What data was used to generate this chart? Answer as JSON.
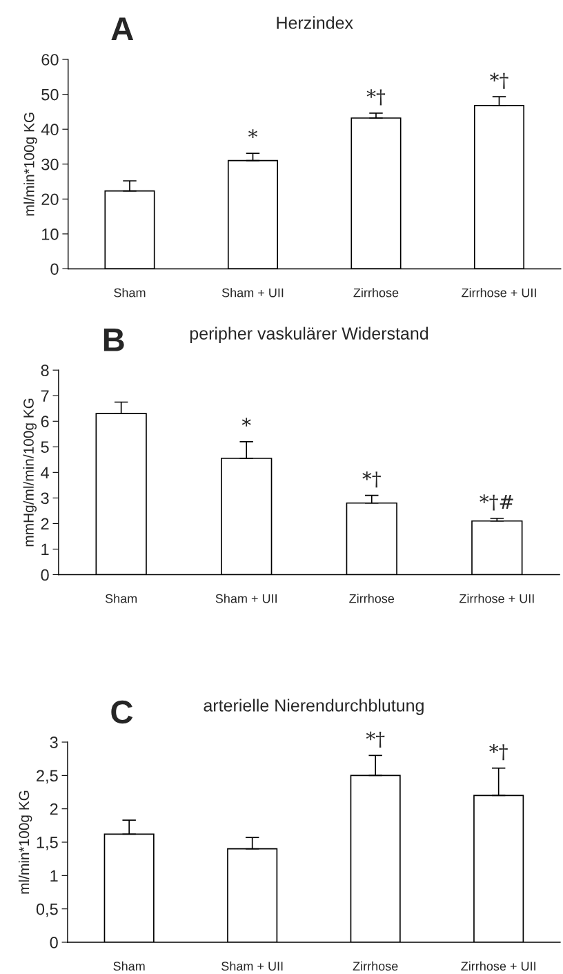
{
  "chart_data": [
    {
      "type": "bar",
      "title": "Herzindex",
      "ylabel": "ml/min*100g KG",
      "categories": [
        "Sham",
        "Sham + UII",
        "Zirrhose",
        "Zirrhose + UII"
      ],
      "values": [
        22.3,
        31,
        43.2,
        46.8
      ],
      "color": "#ffffff",
      "errors": [
        [
          22.3,
          25.2
        ],
        [
          31,
          33.1
        ],
        [
          43.2,
          44.6
        ],
        [
          46.8,
          49.3
        ]
      ],
      "ylim": [
        0,
        60
      ],
      "yticks": [
        0,
        10,
        20,
        30,
        40,
        50,
        60
      ],
      "grid": false,
      "value_labels": [
        null,
        "*",
        "*†",
        "*†"
      ],
      "annotations": [
        "A"
      ]
    },
    {
      "type": "bar",
      "title": "peripher vaskulärer Widerstand",
      "ylabel": "mmHg/ml/min/100g KG",
      "categories": [
        "Sham",
        "Sham + UII",
        "Zirrhose",
        "Zirrhose + UII"
      ],
      "values": [
        6.3,
        4.55,
        2.8,
        2.1
      ],
      "color": "#ffffff",
      "errors": [
        [
          6.3,
          6.75
        ],
        [
          4.55,
          5.2
        ],
        [
          2.8,
          3.1
        ],
        [
          2.1,
          2.2
        ]
      ],
      "ylim": [
        0,
        8
      ],
      "yticks": [
        0,
        1,
        2,
        3,
        4,
        5,
        6,
        7,
        8
      ],
      "grid": false,
      "value_labels": [
        null,
        "*",
        "*†",
        "*†#"
      ],
      "annotations": [
        "B"
      ]
    },
    {
      "type": "bar",
      "title": "arterielle Nierendurchblutung",
      "ylabel": "ml/min*100g KG",
      "categories": [
        "Sham",
        "Sham + UII",
        "Zirrhose",
        "Zirrhose + UII"
      ],
      "values": [
        1.62,
        1.4,
        2.5,
        2.2
      ],
      "color": "#ffffff",
      "errors": [
        [
          1.62,
          1.83
        ],
        [
          1.4,
          1.57
        ],
        [
          2.5,
          2.8
        ],
        [
          2.2,
          2.61
        ]
      ],
      "ylim": [
        0,
        3
      ],
      "yticks": [
        0,
        {
          "value": 0.5,
          "label": "0,5"
        },
        1,
        {
          "value": 1.5,
          "label": "1,5"
        },
        2,
        {
          "value": 2.5,
          "label": "2,5"
        },
        3
      ],
      "grid": false,
      "value_labels": [
        null,
        null,
        "*†",
        "*†"
      ],
      "annotations": [
        "C"
      ]
    }
  ]
}
